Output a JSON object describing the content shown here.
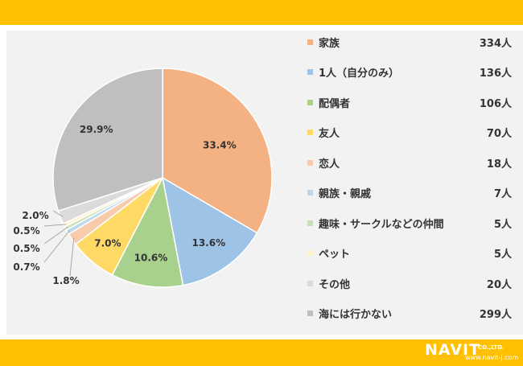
{
  "colors": {
    "banner": "#FFC000",
    "background": "#F2F2F2",
    "leader": "#A6A6A6"
  },
  "chart_data": {
    "type": "pie",
    "title": "",
    "slices": [
      {
        "label": "家族",
        "count_label": "334人",
        "percent": 33.4,
        "percent_label": "33.4%",
        "color": "#F4B183"
      },
      {
        "label": "1人（自分のみ）",
        "count_label": "136人",
        "percent": 13.6,
        "percent_label": "13.6%",
        "color": "#9DC3E6"
      },
      {
        "label": "配偶者",
        "count_label": "106人",
        "percent": 10.6,
        "percent_label": "10.6%",
        "color": "#A9D18E"
      },
      {
        "label": "友人",
        "count_label": "70人",
        "percent": 7.0,
        "percent_label": "7.0%",
        "color": "#FFD966"
      },
      {
        "label": "恋人",
        "count_label": "18人",
        "percent": 1.8,
        "percent_label": "1.8%",
        "color": "#F8CBAD"
      },
      {
        "label": "親族・親戚",
        "count_label": "7人",
        "percent": 0.7,
        "percent_label": "0.7%",
        "color": "#BDD7EE"
      },
      {
        "label": "趣味・サークルなどの仲間",
        "count_label": "5人",
        "percent": 0.5,
        "percent_label": "0.5%",
        "color": "#C5E0B4"
      },
      {
        "label": "ペット",
        "count_label": "5人",
        "percent": 0.5,
        "percent_label": "0.5%",
        "color": "#FFF2CC"
      },
      {
        "label": "その他",
        "count_label": "20人",
        "percent": 2.0,
        "percent_label": "2.0%",
        "color": "#DBDBDB"
      },
      {
        "label": "海には行かない",
        "count_label": "299人",
        "percent": 29.9,
        "percent_label": "29.9%",
        "color": "#BFBFBF"
      }
    ],
    "legend_position": "right"
  },
  "logo": {
    "name": "NAVIT",
    "suffix": "CO.,LTD.",
    "url": "www.navit-j.com"
  }
}
